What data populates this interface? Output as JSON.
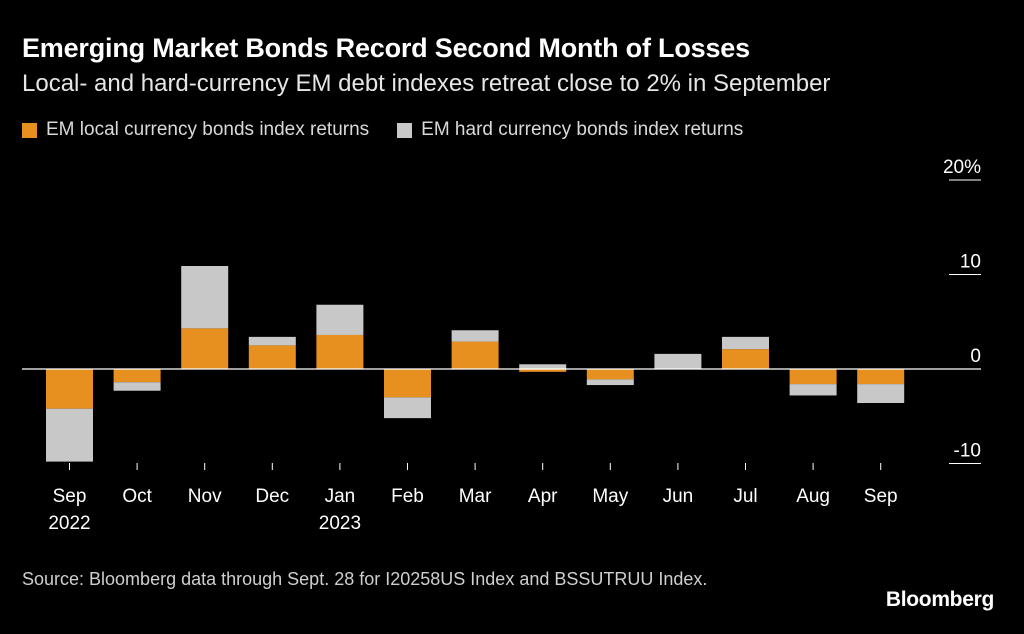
{
  "title": "Emerging Market Bonds Record Second Month of Losses",
  "subtitle": "Local- and hard-currency EM debt indexes retreat close to 2% in September",
  "colors": {
    "local": "#e8901f",
    "hard": "#c8c8c8",
    "axis": "#ffffff",
    "text": "#ffffff"
  },
  "chart_data": {
    "type": "bar",
    "stacked": true,
    "title": "Emerging Market Bonds Record Second Month of Losses",
    "categories": [
      "Sep",
      "Oct",
      "Nov",
      "Dec",
      "Jan",
      "Feb",
      "Mar",
      "Apr",
      "May",
      "Jun",
      "Jul",
      "Aug",
      "Sep"
    ],
    "category_sublabels": [
      "2022",
      "",
      "",
      "",
      "2023",
      "",
      "",
      "",
      "",
      "",
      "",
      "",
      ""
    ],
    "series": [
      {
        "name": "EM local currency bonds index returns",
        "color": "#e8901f",
        "values": [
          -4.2,
          -1.4,
          4.3,
          2.5,
          3.6,
          -3.0,
          2.9,
          -0.3,
          -1.1,
          0.0,
          2.1,
          -1.6,
          -1.6
        ]
      },
      {
        "name": "EM hard currency bonds index returns",
        "color": "#c8c8c8",
        "values": [
          -5.6,
          -0.9,
          6.6,
          0.9,
          3.2,
          -2.2,
          1.2,
          0.5,
          -0.6,
          1.6,
          1.3,
          -1.2,
          -2.0
        ]
      }
    ],
    "yticks": [
      {
        "value": 20,
        "label": "20%"
      },
      {
        "value": 10,
        "label": "10"
      },
      {
        "value": 0,
        "label": "0"
      },
      {
        "value": -10,
        "label": "-10"
      }
    ],
    "ylim": [
      -10,
      20
    ],
    "xlabel": "",
    "ylabel": "",
    "legend_position": "top-left"
  },
  "source": "Source: Bloomberg data through Sept. 28 for I20258US Index and BSSUTRUU Index.",
  "brand": "Bloomberg"
}
